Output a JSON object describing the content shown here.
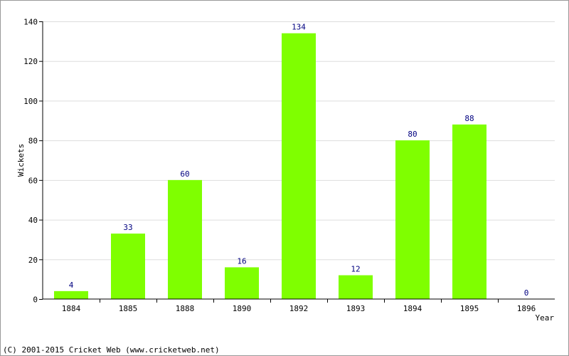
{
  "chart_data": {
    "type": "bar",
    "categories": [
      "1884",
      "1885",
      "1888",
      "1890",
      "1892",
      "1893",
      "1894",
      "1895",
      "1896"
    ],
    "values": [
      4,
      33,
      60,
      16,
      134,
      12,
      80,
      88,
      0
    ],
    "xlabel": "Year",
    "ylabel": "Wickets",
    "ylim": [
      0,
      140
    ],
    "yticks": [
      0,
      20,
      40,
      60,
      80,
      100,
      120,
      140
    ],
    "grid": true,
    "legend": "none",
    "bar_color": "#7fff00",
    "value_label_color": "#000080"
  },
  "footer": {
    "copyright": "(C) 2001-2015 Cricket Web (www.cricketweb.net)"
  }
}
